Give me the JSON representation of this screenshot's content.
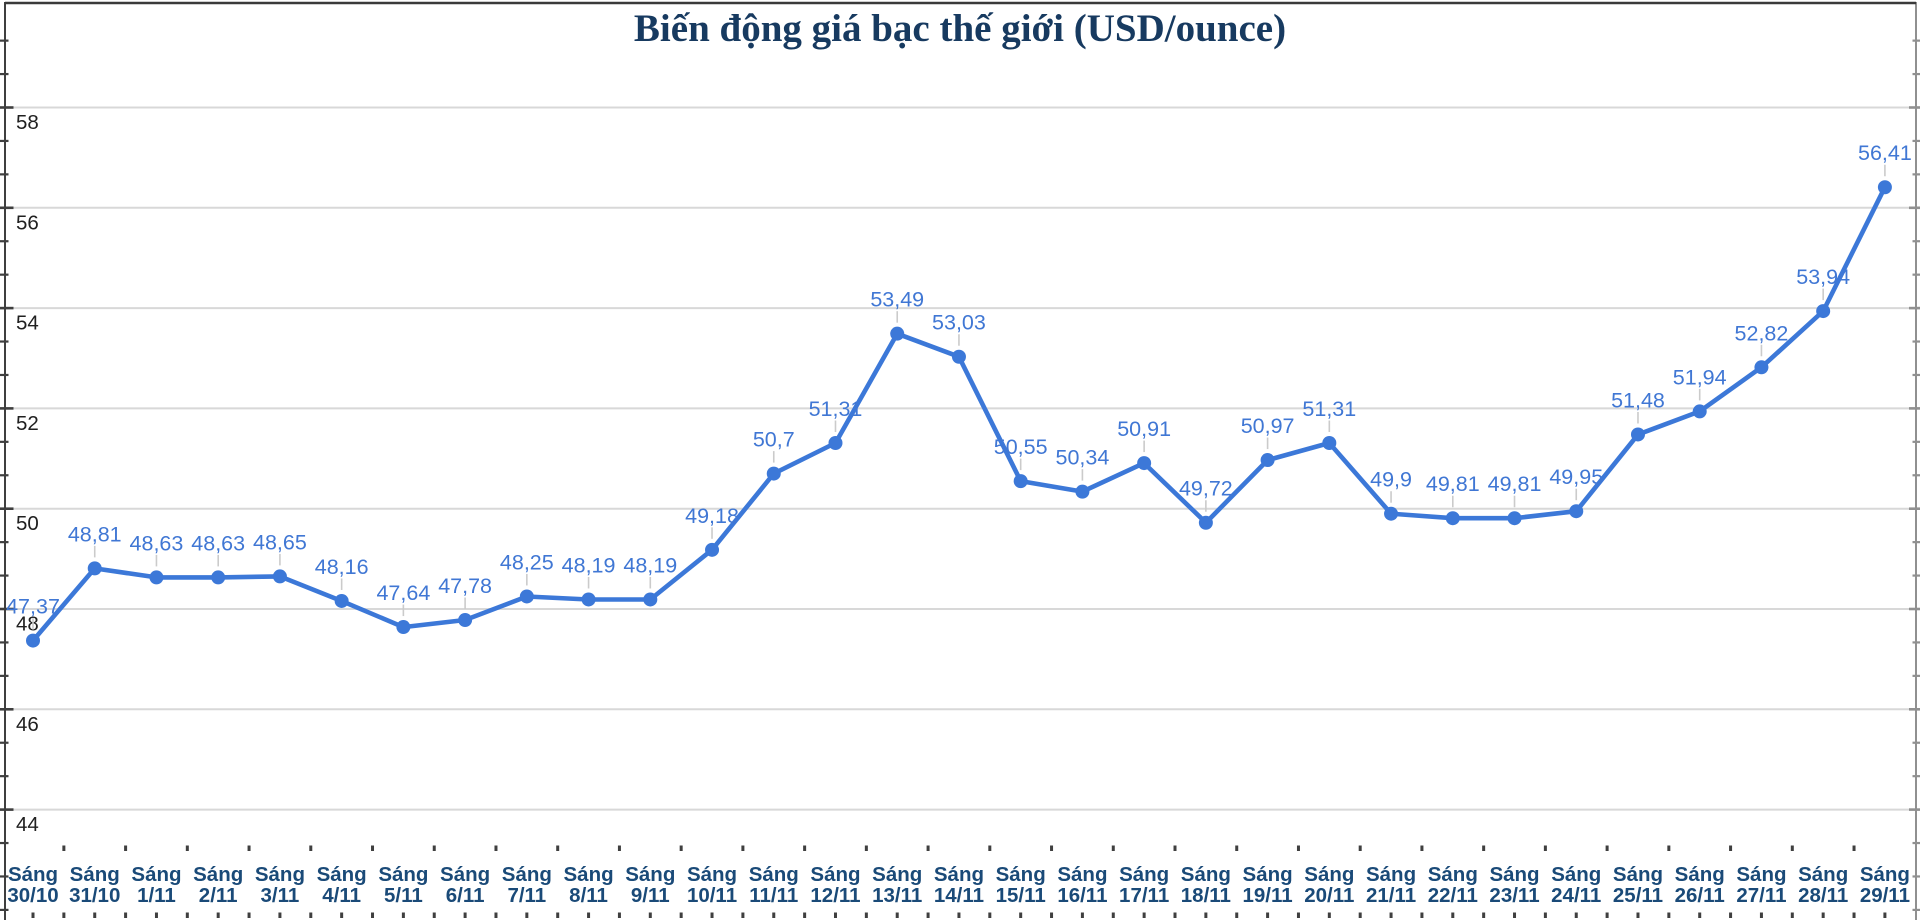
{
  "page": {
    "title": "Biến động giá bạc thế giới (USD/ounce)"
  },
  "chart_data": {
    "type": "line",
    "title": "Biến động giá bạc thế giới (USD/ounce)",
    "unit": "USD/ounce",
    "legend": "none",
    "grid": true,
    "ylim": [
      44,
      58
    ],
    "y_ticks": [
      58,
      56,
      54,
      52,
      50,
      48,
      46,
      44
    ],
    "categories": [
      "Sáng 30/10",
      "Sáng 31/10",
      "Sáng 1/11",
      "Sáng 2/11",
      "Sáng 3/11",
      "Sáng 4/11",
      "Sáng 5/11",
      "Sáng 6/11",
      "Sáng 7/11",
      "Sáng 8/11",
      "Sáng 9/11",
      "Sáng 10/11",
      "Sáng 11/11",
      "Sáng 12/11",
      "Sáng 13/11",
      "Sáng 14/11",
      "Sáng 15/11",
      "Sáng 16/11",
      "Sáng 17/11",
      "Sáng 18/11",
      "Sáng 19/11",
      "Sáng 20/11",
      "Sáng 21/11",
      "Sáng 22/11",
      "Sáng 23/11",
      "Sáng 24/11",
      "Sáng 25/11",
      "Sáng 26/11",
      "Sáng 27/11",
      "Sáng 28/11",
      "Sáng 29/11"
    ],
    "values": [
      47.37,
      48.81,
      48.63,
      48.63,
      48.65,
      48.16,
      47.64,
      47.78,
      48.25,
      48.19,
      48.19,
      49.18,
      50.7,
      51.31,
      53.49,
      53.03,
      50.55,
      50.34,
      50.91,
      49.72,
      50.97,
      51.31,
      49.9,
      49.81,
      49.81,
      49.95,
      51.48,
      51.94,
      52.82,
      53.94,
      56.41
    ],
    "point_labels": [
      "47,37",
      "48,81",
      "48,63",
      "48,63",
      "48,65",
      "48,16",
      "47,64",
      "47,78",
      "48,25",
      "48,19",
      "48,19",
      "49,18",
      "50,7",
      "51,31",
      "53,49",
      "53,03",
      "50,55",
      "50,34",
      "50,91",
      "49,72",
      "50,97",
      "51,31",
      "49,9",
      "49,81",
      "49,81",
      "49,95",
      "51,48",
      "51,94",
      "52,82",
      "53,94",
      "56,41"
    ],
    "colors": {
      "line": "#3c78d8",
      "point": "#3c78d8",
      "point_label": "#4077d4",
      "x_label": "#1a4a78",
      "y_label": "#202020",
      "grid": "#d8d8d8",
      "axis": "#3f3f3f",
      "title": "#173a60",
      "leader": "#cbcbcb"
    }
  }
}
